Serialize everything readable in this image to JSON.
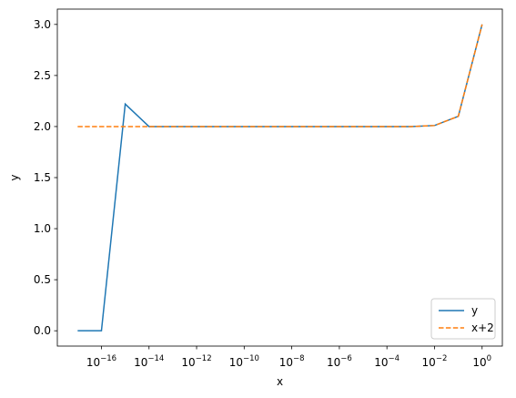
{
  "chart_data": {
    "type": "line",
    "x_label": "x",
    "y_label": "y",
    "xscale": "log",
    "x": [
      1e-17,
      1e-16,
      1e-15,
      1e-14,
      1e-13,
      1e-12,
      1e-11,
      1e-10,
      1e-09,
      1e-08,
      1e-07,
      1e-06,
      1e-05,
      0.0001,
      0.001,
      0.01,
      0.1,
      1
    ],
    "series": [
      {
        "name": "y",
        "color": "#1f77b4",
        "dash": false,
        "values": [
          0,
          0,
          2.22,
          2.0,
          2.0,
          2.0,
          2.0,
          2.0,
          2.0,
          2.0,
          2.0,
          2.0,
          2.0,
          2.0,
          2.0,
          2.01,
          2.1,
          3.0
        ]
      },
      {
        "name": "x+2",
        "color": "#ff7f0e",
        "dash": true,
        "values": [
          2.0,
          2.0,
          2.0,
          2.0,
          2.0,
          2.0,
          2.0,
          2.0,
          2.0,
          2.0,
          2.0,
          2.0,
          2.0,
          2.0,
          2.0,
          2.01,
          2.1,
          3.0
        ]
      }
    ],
    "xlim": [
      1.4e-18,
      7.1
    ],
    "ylim": [
      -0.15,
      3.15
    ],
    "xticks": [
      {
        "value": 1e-16,
        "label": "10−16"
      },
      {
        "value": 1e-14,
        "label": "10−14"
      },
      {
        "value": 1e-12,
        "label": "10−12"
      },
      {
        "value": 1e-10,
        "label": "10−10"
      },
      {
        "value": 1e-08,
        "label": "10−8"
      },
      {
        "value": 1e-06,
        "label": "10−6"
      },
      {
        "value": 0.0001,
        "label": "10−4"
      },
      {
        "value": 0.01,
        "label": "10−2"
      },
      {
        "value": 1,
        "label": "100"
      }
    ],
    "yticks": [
      {
        "value": 0,
        "label": "0.0"
      },
      {
        "value": 0.5,
        "label": "0.5"
      },
      {
        "value": 1,
        "label": "1.0"
      },
      {
        "value": 1.5,
        "label": "1.5"
      },
      {
        "value": 2,
        "label": "2.0"
      },
      {
        "value": 2.5,
        "label": "2.5"
      },
      {
        "value": 3,
        "label": "3.0"
      }
    ],
    "legend": "lower right"
  }
}
